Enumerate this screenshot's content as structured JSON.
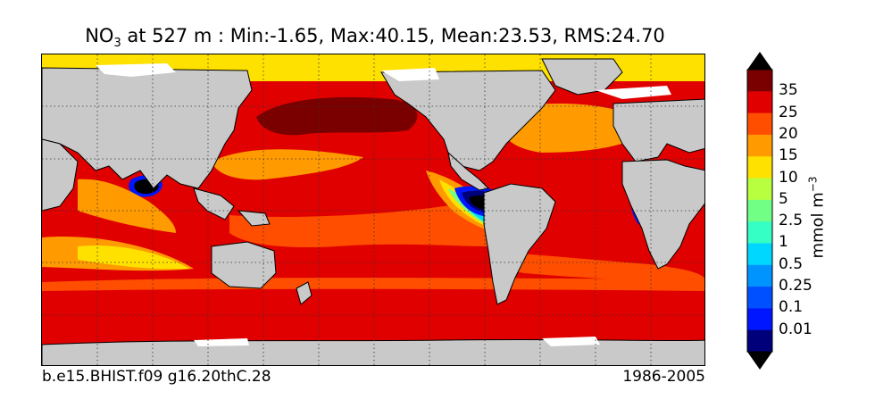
{
  "title": {
    "var_main": "NO",
    "var_sub": "3",
    "rest": " at 527 m : Min:-1.65, Max:40.15, Mean:23.53, RMS:24.70"
  },
  "footer": {
    "case": "b.e15.BHIST.f09 g16.20thC.28",
    "period": "1986-2005"
  },
  "colorbar": {
    "unit_main": "mmol m",
    "unit_sup": "−3",
    "ticks": [
      "35",
      "25",
      "20",
      "15",
      "10",
      "5",
      "2.5",
      "1",
      "0.5",
      "0.25",
      "0.1",
      "0.01"
    ],
    "colors": [
      "#7a0000",
      "#e00000",
      "#ff4e00",
      "#ff9a00",
      "#ffe100",
      "#b7ff3f",
      "#72ff86",
      "#35ffc4",
      "#00d7ff",
      "#0094ff",
      "#0050ff",
      "#0016ff",
      "#00007a"
    ]
  },
  "map": {
    "land_color": "#c9c9c9",
    "sea_ice_color": "#ffffff",
    "grid": "dotted lat/lon lines"
  }
}
